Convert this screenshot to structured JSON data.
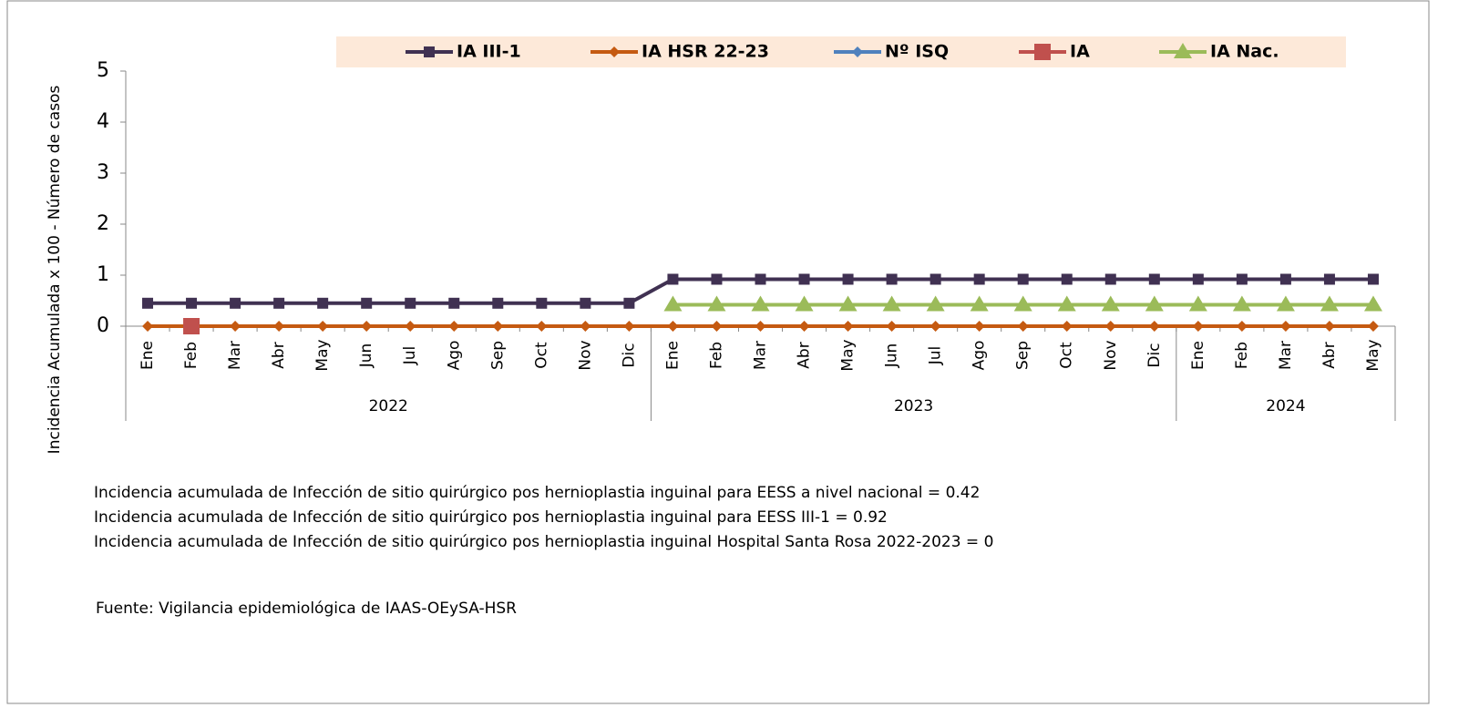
{
  "chart_data": {
    "type": "line",
    "y_label": "Incidencia Acumulada x 100 - Número de casos",
    "categories": [
      "Ene",
      "Feb",
      "Mar",
      "Abr",
      "May",
      "Jun",
      "Jul",
      "Ago",
      "Sep",
      "Oct",
      "Nov",
      "Dic",
      "Ene",
      "Feb",
      "Mar",
      "Abr",
      "May",
      "Jun",
      "Jul",
      "Ago",
      "Sep",
      "Oct",
      "Nov",
      "Dic",
      "Ene",
      "Feb",
      "Mar",
      "Abr",
      "May"
    ],
    "groups": [
      {
        "label": "2022",
        "count": 12
      },
      {
        "label": "2023",
        "count": 12
      },
      {
        "label": "2024",
        "count": 5
      }
    ],
    "series": [
      {
        "name": "IA III-1",
        "color": "#403152",
        "marker": "square",
        "values": [
          0.45,
          0.45,
          0.45,
          0.45,
          0.45,
          0.45,
          0.45,
          0.45,
          0.45,
          0.45,
          0.45,
          0.45,
          0.92,
          0.92,
          0.92,
          0.92,
          0.92,
          0.92,
          0.92,
          0.92,
          0.92,
          0.92,
          0.92,
          0.92,
          0.92,
          0.92,
          0.92,
          0.92,
          0.92
        ]
      },
      {
        "name": "IA HSR 22-23",
        "color": "#c55a11",
        "marker": "diamond",
        "values": [
          0,
          0,
          0,
          0,
          0,
          0,
          0,
          0,
          0,
          0,
          0,
          0,
          0,
          0,
          0,
          0,
          0,
          0,
          0,
          0,
          0,
          0,
          0,
          0,
          0,
          0,
          0,
          0,
          0
        ]
      },
      {
        "name": "Nº ISQ",
        "color": "#4f81bd",
        "marker": "diamond",
        "values": [
          null,
          null,
          null,
          null,
          null,
          null,
          null,
          null,
          null,
          null,
          null,
          null,
          null,
          null,
          null,
          null,
          null,
          null,
          null,
          null,
          null,
          null,
          null,
          null,
          null,
          null,
          null,
          null,
          null
        ]
      },
      {
        "name": "IA",
        "color": "#c0504d",
        "marker": "bigsquare",
        "values": [
          null,
          0,
          null,
          null,
          null,
          null,
          null,
          null,
          null,
          null,
          null,
          null,
          null,
          null,
          null,
          null,
          null,
          null,
          null,
          null,
          null,
          null,
          null,
          null,
          null,
          null,
          null,
          null,
          null
        ]
      },
      {
        "name": "IA  Nac.",
        "color": "#9bbb59",
        "marker": "triangle",
        "values": [
          null,
          null,
          null,
          null,
          null,
          null,
          null,
          null,
          null,
          null,
          null,
          null,
          0.42,
          0.42,
          0.42,
          0.42,
          0.42,
          0.42,
          0.42,
          0.42,
          0.42,
          0.42,
          0.42,
          0.42,
          0.42,
          0.42,
          0.42,
          0.42,
          0.42
        ]
      }
    ],
    "ylim": [
      0,
      5
    ],
    "yticks": [
      0,
      1,
      2,
      3,
      4,
      5
    ],
    "notes": [
      "Incidencia acumulada de Infección de sitio quirúrgico pos hernioplastia inguinal para EESS a nivel nacional = 0.42",
      "Incidencia acumulada de Infección de sitio quirúrgico pos hernioplastia inguinal para EESS III-1 = 0.92",
      "Incidencia acumulada de Infección de sitio quirúrgico pos hernioplastia inguinal Hospital Santa Rosa  2022-2023 = 0"
    ],
    "source": "Fuente: Vigilancia epidemiológica de IAAS-OEySA-HSR"
  }
}
